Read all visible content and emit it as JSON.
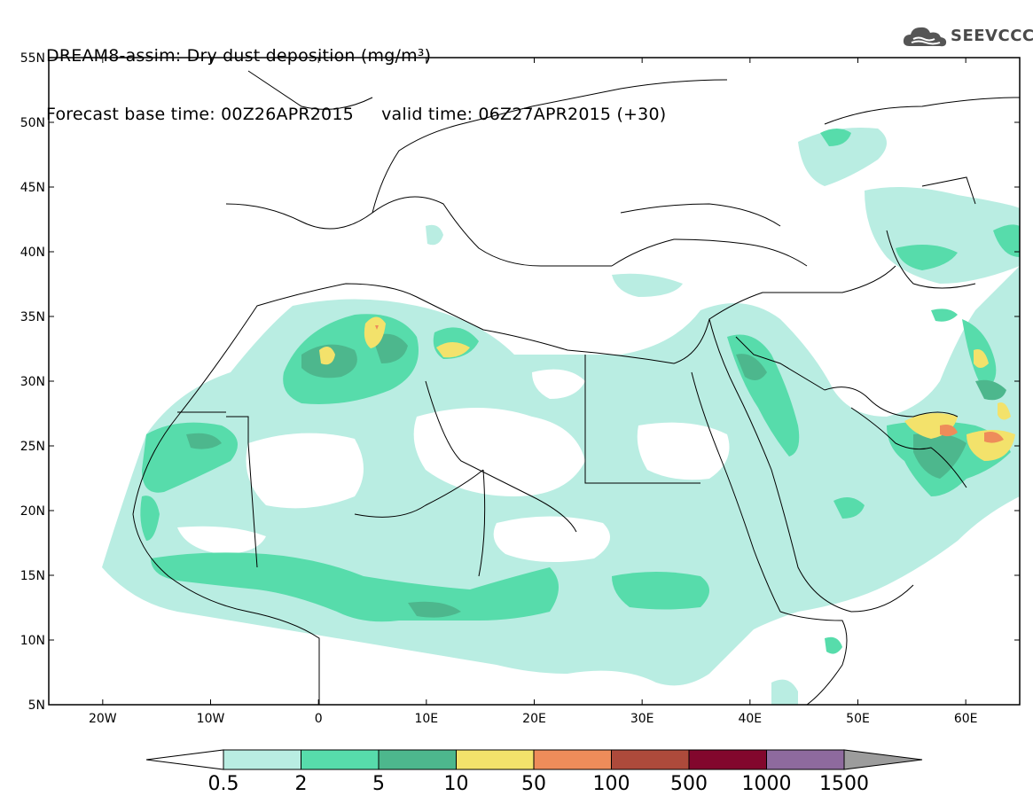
{
  "title": {
    "line1": "DREAM8-assim: Dry dust deposition (mg/m³)",
    "line2": "Forecast base time: 00Z26APR2015     valid time: 06Z27APR2015 (+30)"
  },
  "logo": {
    "text": "SEEVCCC",
    "icon": "cloud-icon"
  },
  "map": {
    "lat_labels": [
      "55N",
      "50N",
      "45N",
      "40N",
      "35N",
      "30N",
      "25N",
      "20N",
      "15N",
      "10N",
      "5N"
    ],
    "lat_values": [
      55,
      50,
      45,
      40,
      35,
      30,
      25,
      20,
      15,
      10,
      5
    ],
    "lon_labels": [
      "20W",
      "10W",
      "0",
      "10E",
      "20E",
      "30E",
      "40E",
      "50E",
      "60E"
    ],
    "lon_values": [
      -20,
      -10,
      0,
      10,
      20,
      30,
      40,
      50,
      60
    ],
    "lon_range": [
      -25,
      65
    ],
    "lat_range": [
      5,
      55
    ]
  },
  "colorbar": {
    "labels": [
      "0.5",
      "2",
      "5",
      "10",
      "50",
      "100",
      "500",
      "1000",
      "1500"
    ],
    "colors": [
      "#b9ede2",
      "#57dcab",
      "#4db78d",
      "#f3e26b",
      "#ee8c5a",
      "#ad4a3b",
      "#82072d",
      "#8e6a9e",
      "#9c9c9c"
    ]
  }
}
